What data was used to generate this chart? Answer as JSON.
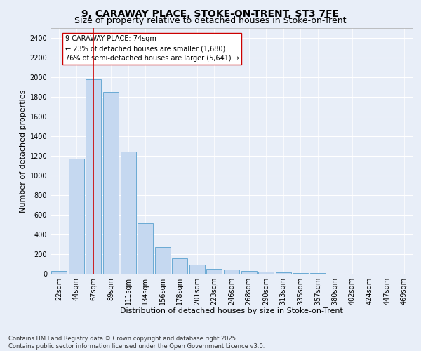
{
  "title_line1": "9, CARAWAY PLACE, STOKE-ON-TRENT, ST3 7FE",
  "title_line2": "Size of property relative to detached houses in Stoke-on-Trent",
  "xlabel": "Distribution of detached houses by size in Stoke-on-Trent",
  "ylabel": "Number of detached properties",
  "categories": [
    "22sqm",
    "44sqm",
    "67sqm",
    "89sqm",
    "111sqm",
    "134sqm",
    "156sqm",
    "178sqm",
    "201sqm",
    "223sqm",
    "246sqm",
    "268sqm",
    "290sqm",
    "313sqm",
    "335sqm",
    "357sqm",
    "380sqm",
    "402sqm",
    "424sqm",
    "447sqm",
    "469sqm"
  ],
  "values": [
    28,
    1170,
    1980,
    1850,
    1240,
    515,
    270,
    155,
    90,
    50,
    40,
    30,
    20,
    15,
    8,
    5,
    3,
    2,
    1,
    1,
    1
  ],
  "bar_color": "#c5d8f0",
  "bar_edge_color": "#6aaad4",
  "vline_x_index": 2,
  "vline_color": "#cc0000",
  "annotation_line1": "9 CARAWAY PLACE: 74sqm",
  "annotation_line2": "← 23% of detached houses are smaller (1,680)",
  "annotation_line3": "76% of semi-detached houses are larger (5,641) →",
  "annotation_box_color": "#ffffff",
  "annotation_box_edge": "#cc0000",
  "ylim": [
    0,
    2500
  ],
  "yticks": [
    0,
    200,
    400,
    600,
    800,
    1000,
    1200,
    1400,
    1600,
    1800,
    2000,
    2200,
    2400
  ],
  "footer_line1": "Contains HM Land Registry data © Crown copyright and database right 2025.",
  "footer_line2": "Contains public sector information licensed under the Open Government Licence v3.0.",
  "bg_color": "#e8eef8",
  "plot_bg_color": "#e8eef8",
  "grid_color": "#ffffff",
  "title_fontsize": 10,
  "subtitle_fontsize": 9,
  "axis_label_fontsize": 8,
  "tick_fontsize": 7,
  "annotation_fontsize": 7,
  "footer_fontsize": 6
}
